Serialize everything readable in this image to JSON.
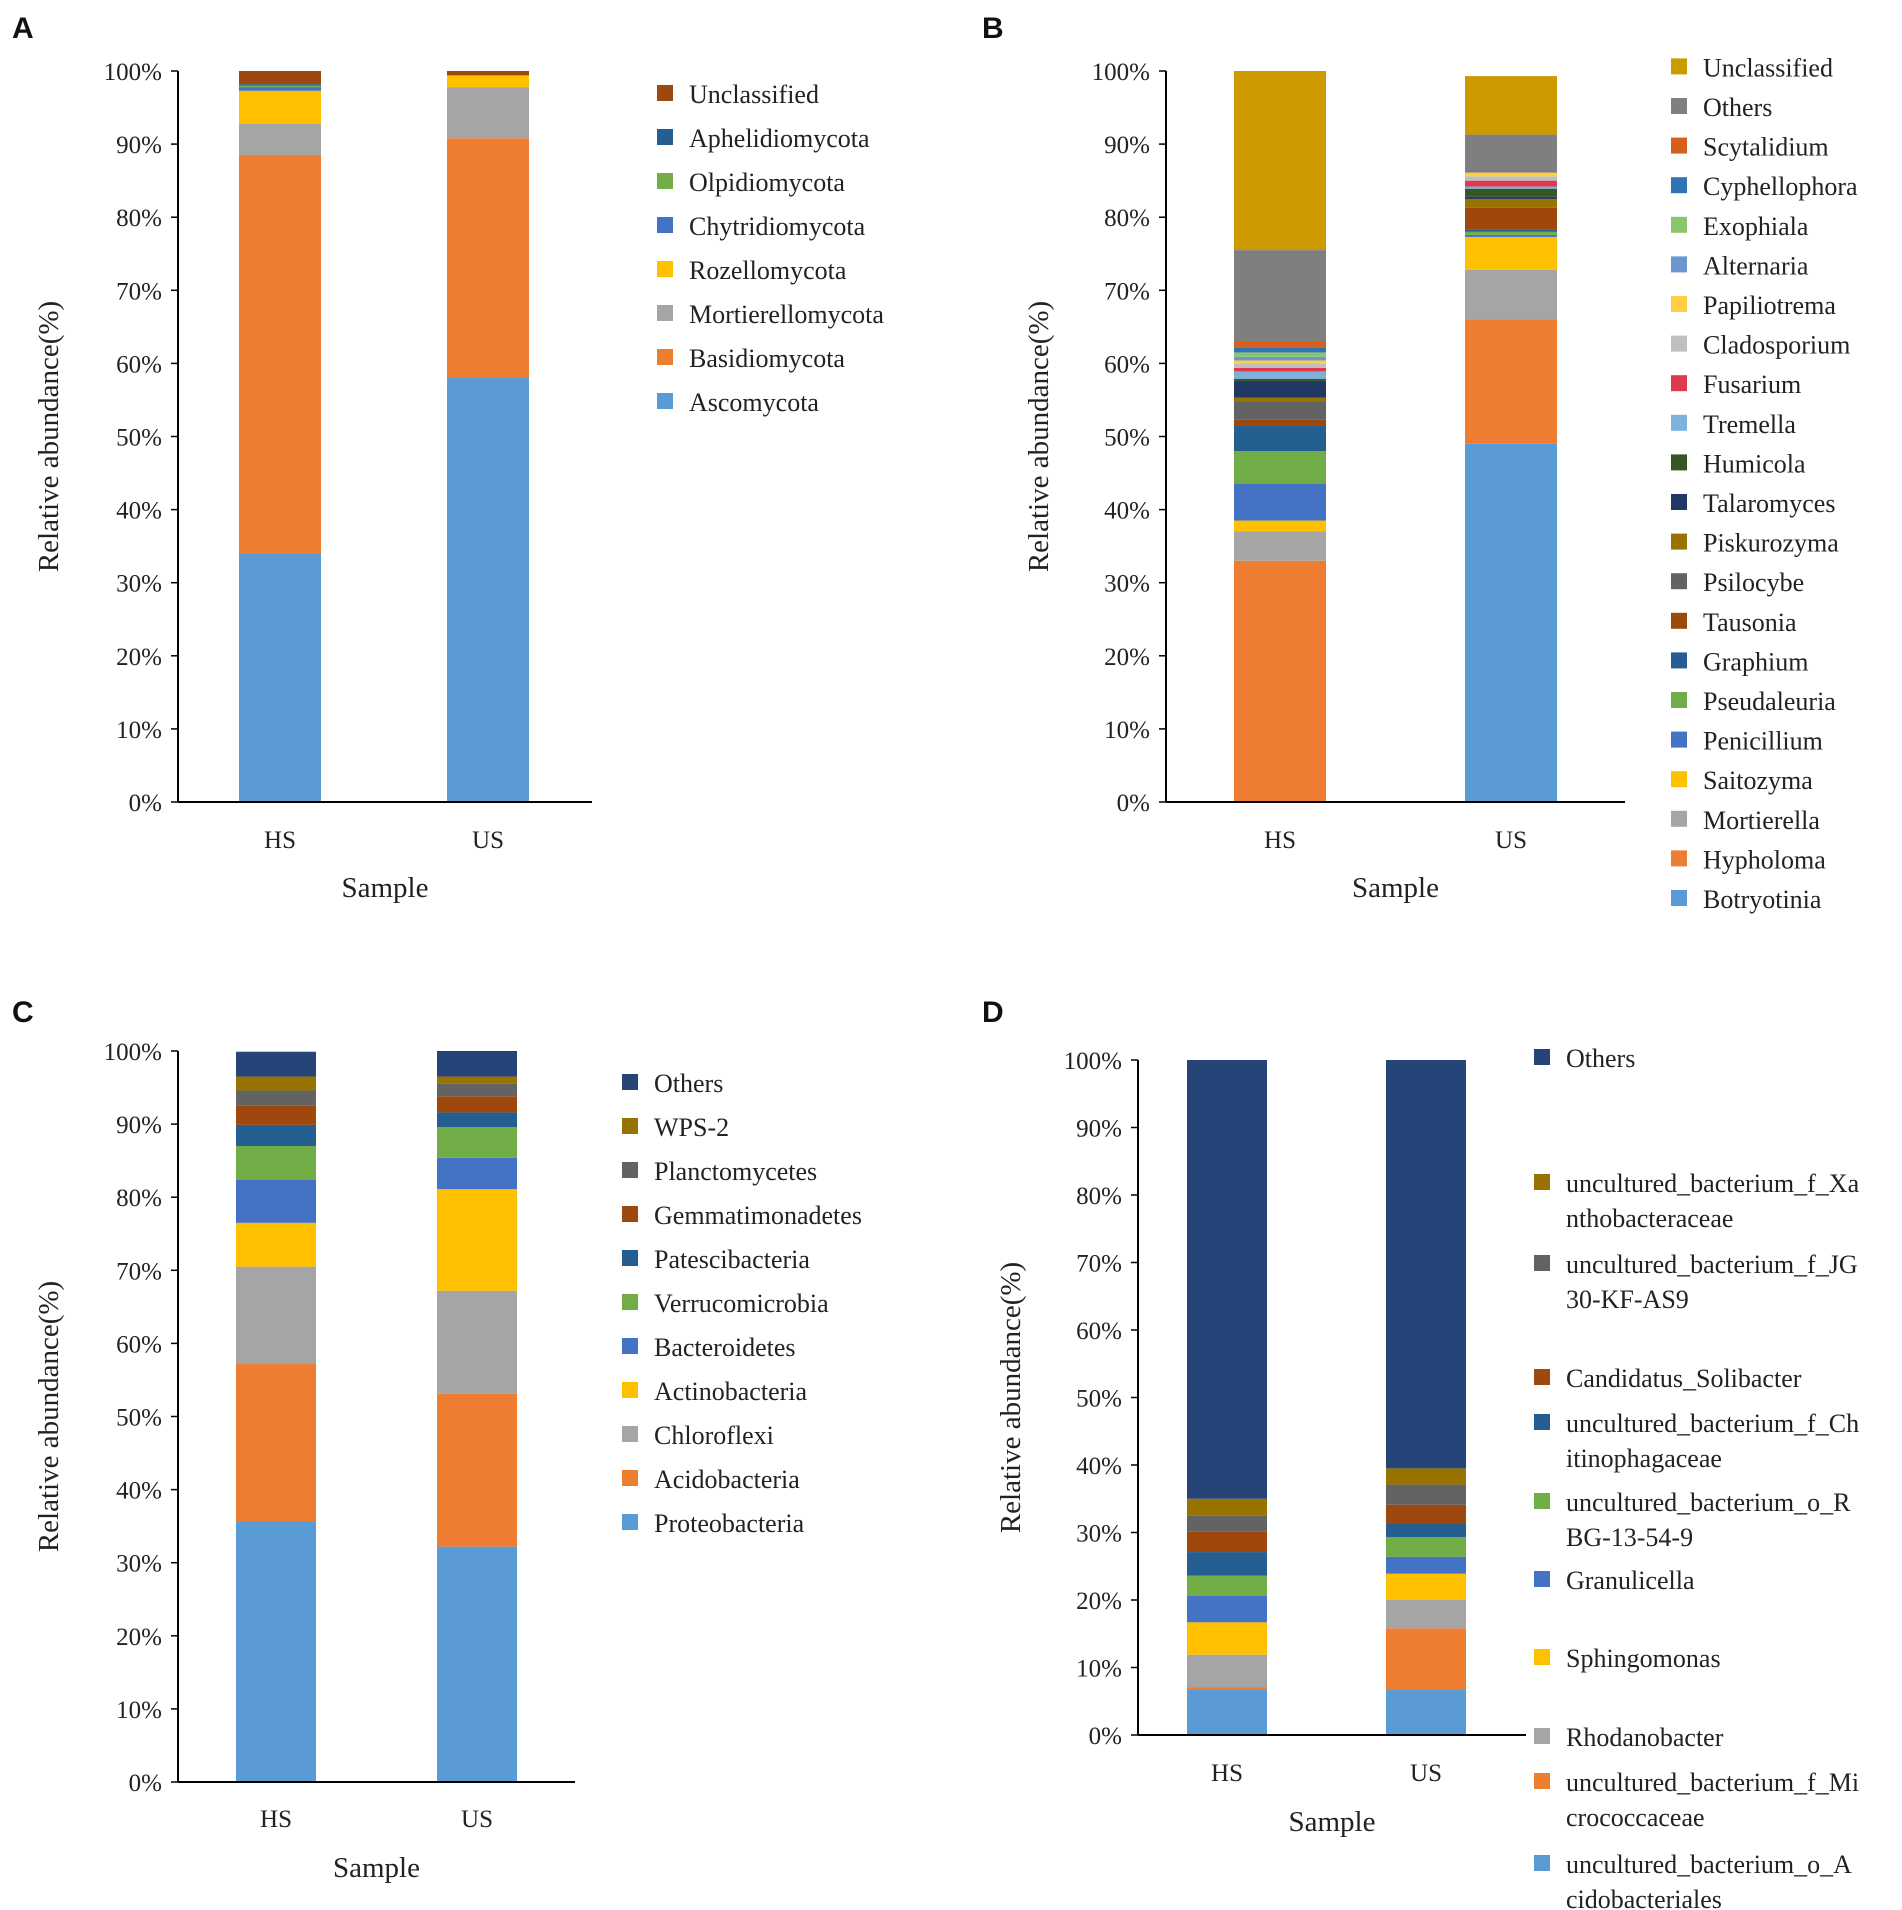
{
  "colors": {
    "lightblue": "#5b9bd5",
    "orange": "#ed7d31",
    "gray": "#a5a5a5",
    "gold": "#ffc000",
    "blue": "#4472c4",
    "green": "#70ad47",
    "darkblue": "#255e91",
    "rust": "#9e480e",
    "dgray": "#636363",
    "olive": "#997300",
    "navy": "#264478",
    "mustard": "#cc9900",
    "ogray": "#7f7f7f",
    "scyt": "#d55f1e",
    "cyph": "#2f75b5",
    "exo": "#8cc56e",
    "alt": "#6a96d2",
    "pap": "#ffcf3f",
    "clad": "#bfbfbf",
    "fus": "#e0394b",
    "trem": "#7fb1dd",
    "hum": "#375623",
    "tal": "#203864"
  },
  "chart_data": [
    {
      "panel": "A",
      "type": "bar",
      "stacked": true,
      "categories": [
        "HS",
        "US"
      ],
      "xlabel": "Sample",
      "ylabel": "Relative abundance(%)",
      "ylim": [
        0,
        100
      ],
      "yticks": [
        "0%",
        "10%",
        "20%",
        "30%",
        "40%",
        "50%",
        "60%",
        "70%",
        "80%",
        "90%",
        "100%"
      ],
      "series": [
        {
          "name": "Ascomycota",
          "color": "lightblue",
          "values": [
            34,
            58
          ]
        },
        {
          "name": "Basidiomycota",
          "color": "orange",
          "values": [
            54.5,
            32.8
          ]
        },
        {
          "name": "Mortierellomycota",
          "color": "gray",
          "values": [
            4.3,
            7
          ]
        },
        {
          "name": "Rozellomycota",
          "color": "gold",
          "values": [
            4.5,
            1.6
          ]
        },
        {
          "name": "Chytridiomycota",
          "color": "blue",
          "values": [
            0.5,
            0
          ]
        },
        {
          "name": "Olpidiomycota",
          "color": "green",
          "values": [
            0.2,
            0
          ]
        },
        {
          "name": "Aphelidiomycota",
          "color": "darkblue",
          "values": [
            0.2,
            0
          ]
        },
        {
          "name": "Unclassified",
          "color": "rust",
          "values": [
            1.8,
            0.6
          ]
        }
      ]
    },
    {
      "panel": "B",
      "type": "bar",
      "stacked": true,
      "categories": [
        "HS",
        "US"
      ],
      "xlabel": "Sample",
      "ylabel": "Relative abundance(%)",
      "ylim": [
        0,
        100
      ],
      "yticks": [
        "0%",
        "10%",
        "20%",
        "30%",
        "40%",
        "50%",
        "60%",
        "70%",
        "80%",
        "90%",
        "100%"
      ],
      "series": [
        {
          "name": "Botryotinia",
          "color": "lightblue",
          "values": [
            0,
            49
          ]
        },
        {
          "name": "Hypholoma",
          "color": "orange",
          "values": [
            33,
            17
          ]
        },
        {
          "name": "Mortierella",
          "color": "gray",
          "values": [
            4,
            6.8
          ]
        },
        {
          "name": "Saitozyma",
          "color": "gold",
          "values": [
            1.5,
            4.5
          ]
        },
        {
          "name": "Penicillium",
          "color": "blue",
          "values": [
            5,
            0.3
          ]
        },
        {
          "name": "Pseudaleuria",
          "color": "green",
          "values": [
            4.5,
            0.4
          ]
        },
        {
          "name": "Graphium",
          "color": "darkblue",
          "values": [
            3.5,
            0.3
          ]
        },
        {
          "name": "Tausonia",
          "color": "rust",
          "values": [
            0.8,
            3
          ]
        },
        {
          "name": "Psilocybe",
          "color": "dgray",
          "values": [
            2.5,
            0
          ]
        },
        {
          "name": "Piskurozyma",
          "color": "olive",
          "values": [
            0.5,
            1.2
          ]
        },
        {
          "name": "Talaromyces",
          "color": "tal",
          "values": [
            2.3,
            0.3
          ]
        },
        {
          "name": "Humicola",
          "color": "hum",
          "values": [
            0.3,
            1.1
          ]
        },
        {
          "name": "Tremella",
          "color": "trem",
          "values": [
            1,
            0.3
          ]
        },
        {
          "name": "Fusarium",
          "color": "fus",
          "values": [
            0.5,
            0.8
          ]
        },
        {
          "name": "Cladosporium",
          "color": "clad",
          "values": [
            0.6,
            0.6
          ]
        },
        {
          "name": "Papiliotrema",
          "color": "pap",
          "values": [
            0.4,
            0.5
          ]
        },
        {
          "name": "Alternaria",
          "color": "alt",
          "values": [
            0.5,
            0
          ]
        },
        {
          "name": "Exophiala",
          "color": "exo",
          "values": [
            0.6,
            0
          ]
        },
        {
          "name": "Cyphellophora",
          "color": "cyph",
          "values": [
            0.7,
            0
          ]
        },
        {
          "name": "Scytalidium",
          "color": "scyt",
          "values": [
            0.8,
            0
          ]
        },
        {
          "name": "Others",
          "color": "ogray",
          "values": [
            12.5,
            5.2
          ]
        },
        {
          "name": "Unclassified",
          "color": "mustard",
          "values": [
            24.5,
            8
          ]
        }
      ]
    },
    {
      "panel": "C",
      "type": "bar",
      "stacked": true,
      "categories": [
        "HS",
        "US"
      ],
      "xlabel": "Sample",
      "ylabel": "Relative abundance(%)",
      "ylim": [
        0,
        100
      ],
      "yticks": [
        "0%",
        "10%",
        "20%",
        "30%",
        "40%",
        "50%",
        "60%",
        "70%",
        "80%",
        "90%",
        "100%"
      ],
      "series": [
        {
          "name": "Proteobacteria",
          "color": "lightblue",
          "values": [
            35.7,
            32.2
          ]
        },
        {
          "name": "Acidobacteria",
          "color": "orange",
          "values": [
            21.6,
            20.9
          ]
        },
        {
          "name": "Chloroflexi",
          "color": "gray",
          "values": [
            13.2,
            14.1
          ]
        },
        {
          "name": "Actinobacteria",
          "color": "gold",
          "values": [
            6,
            13.9
          ]
        },
        {
          "name": "Bacteroidetes",
          "color": "blue",
          "values": [
            5.9,
            4.3
          ]
        },
        {
          "name": "Verrucomicrobia",
          "color": "green",
          "values": [
            4.6,
            4.2
          ]
        },
        {
          "name": "Patescibacteria",
          "color": "darkblue",
          "values": [
            2.9,
            2
          ]
        },
        {
          "name": "Gemmatimonadetes",
          "color": "rust",
          "values": [
            2.6,
            2.2
          ]
        },
        {
          "name": "Planctomycetes",
          "color": "dgray",
          "values": [
            2.1,
            1.7
          ]
        },
        {
          "name": "WPS-2",
          "color": "olive",
          "values": [
            1.9,
            1
          ]
        },
        {
          "name": "Others",
          "color": "navy",
          "values": [
            3.4,
            3.5
          ]
        }
      ]
    },
    {
      "panel": "D",
      "type": "bar",
      "stacked": true,
      "categories": [
        "HS",
        "US"
      ],
      "xlabel": "Sample",
      "ylabel": "Relative abundance(%)",
      "ylim": [
        0,
        100
      ],
      "yticks": [
        "0%",
        "10%",
        "20%",
        "30%",
        "40%",
        "50%",
        "60%",
        "70%",
        "80%",
        "90%",
        "100%"
      ],
      "series": [
        {
          "name": "uncultured_bacterium_o_Acidobacteriales",
          "legend_lines": [
            "uncultured_bacterium_o_A",
            "cidobacteriales"
          ],
          "color": "lightblue",
          "values": [
            6.8,
            6.8
          ]
        },
        {
          "name": "uncultured_bacterium_f_Micrococcaceae",
          "legend_lines": [
            "uncultured_bacterium_f_Mi",
            "crococcaceae"
          ],
          "color": "orange",
          "values": [
            0.3,
            9
          ]
        },
        {
          "name": "Rhodanobacter",
          "legend_lines": [
            "Rhodanobacter"
          ],
          "color": "gray",
          "values": [
            4.8,
            4.2
          ]
        },
        {
          "name": "Sphingomonas",
          "legend_lines": [
            "Sphingomonas"
          ],
          "color": "gold",
          "values": [
            4.8,
            3.9
          ]
        },
        {
          "name": "Granulicella",
          "legend_lines": [
            "Granulicella"
          ],
          "color": "blue",
          "values": [
            3.9,
            2.5
          ]
        },
        {
          "name": "uncultured_bacterium_o_RBG-13-54-9",
          "legend_lines": [
            "uncultured_bacterium_o_R",
            "BG-13-54-9"
          ],
          "color": "green",
          "values": [
            3,
            2.9
          ]
        },
        {
          "name": "uncultured_bacterium_f_Chitinophagaceae",
          "legend_lines": [
            "uncultured_bacterium_f_Ch",
            "itinophagaceae"
          ],
          "color": "darkblue",
          "values": [
            3.5,
            2.1
          ]
        },
        {
          "name": "Candidatus_Solibacter",
          "legend_lines": [
            "Candidatus_Solibacter"
          ],
          "color": "rust",
          "values": [
            3,
            2.7
          ]
        },
        {
          "name": "uncultured_bacterium_f_JG30-KF-AS9",
          "legend_lines": [
            "uncultured_bacterium_f_JG",
            "30-KF-AS9"
          ],
          "color": "dgray",
          "values": [
            2.4,
            3
          ]
        },
        {
          "name": "uncultured_bacterium_f_Xanthobacteraceae",
          "legend_lines": [
            "uncultured_bacterium_f_Xa",
            "nthobacteraceae"
          ],
          "color": "olive",
          "values": [
            2.5,
            2.4
          ]
        },
        {
          "name": "Others",
          "legend_lines": [
            "Others"
          ],
          "color": "navy",
          "values": [
            65,
            60.5
          ]
        }
      ]
    }
  ]
}
